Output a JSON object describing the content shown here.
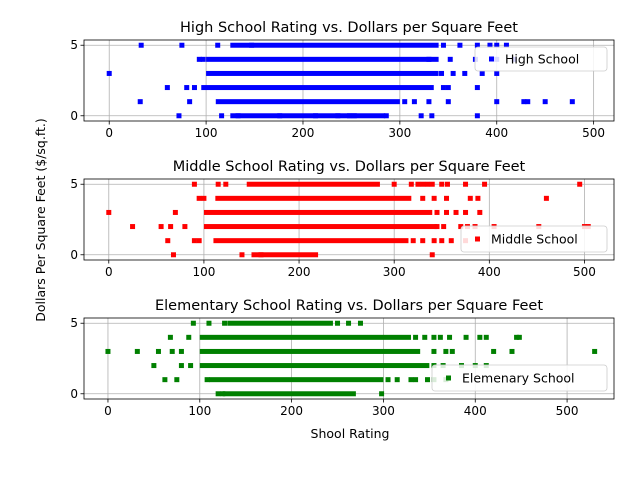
{
  "figure": {
    "shared_ylabel": "Dollars Per Square Feet ($/sq.ft.)",
    "shared_xlabel": "Shool Rating"
  },
  "chart_data": [
    {
      "type": "scatter",
      "title": "High School Rating vs. Dollars per Square Feet",
      "legend": {
        "label": "High School",
        "placement": "right"
      },
      "color": "#0000ff",
      "xlim": [
        -25,
        520
      ],
      "ylim": [
        -0.3,
        5.3
      ],
      "xticks": [
        0,
        100,
        200,
        300,
        400,
        500
      ],
      "yticks": [
        0,
        5
      ],
      "grid": true,
      "bands": [
        {
          "y": 5,
          "x_start": 125,
          "x_end": 340
        },
        {
          "y": 4,
          "x_start": 100,
          "x_end": 340
        },
        {
          "y": 3,
          "x_start": 100,
          "x_end": 340
        },
        {
          "y": 2,
          "x_start": 95,
          "x_end": 335
        },
        {
          "y": 1,
          "x_start": 110,
          "x_end": 300
        },
        {
          "y": 0,
          "x_start": 125,
          "x_end": 285
        }
      ],
      "points": [
        [
          0,
          3
        ],
        [
          33,
          5
        ],
        [
          75,
          5
        ],
        [
          112,
          5
        ],
        [
          147,
          5
        ],
        [
          345,
          5
        ],
        [
          362,
          5
        ],
        [
          380,
          5
        ],
        [
          393,
          5
        ],
        [
          400,
          5
        ],
        [
          410,
          5
        ],
        [
          330,
          4
        ],
        [
          352,
          4
        ],
        [
          378,
          4
        ],
        [
          400,
          4
        ],
        [
          418,
          4
        ],
        [
          93,
          4
        ],
        [
          97,
          4
        ],
        [
          343,
          3
        ],
        [
          355,
          3
        ],
        [
          367,
          3
        ],
        [
          385,
          3
        ],
        [
          400,
          3
        ],
        [
          32,
          1
        ],
        [
          83,
          1
        ],
        [
          305,
          1
        ],
        [
          315,
          1
        ],
        [
          330,
          1
        ],
        [
          350,
          1
        ],
        [
          400,
          1
        ],
        [
          428,
          1
        ],
        [
          432,
          1
        ],
        [
          450,
          1
        ],
        [
          478,
          1
        ],
        [
          60,
          2
        ],
        [
          80,
          2
        ],
        [
          88,
          2
        ],
        [
          345,
          2
        ],
        [
          350,
          2
        ],
        [
          380,
          2
        ],
        [
          72,
          0
        ],
        [
          116,
          0
        ],
        [
          133,
          0
        ],
        [
          176,
          0
        ],
        [
          213,
          0
        ],
        [
          236,
          0
        ],
        [
          248,
          0
        ],
        [
          253,
          0
        ],
        [
          286,
          0
        ],
        [
          322,
          0
        ],
        [
          333,
          0
        ],
        [
          380,
          0
        ]
      ]
    },
    {
      "type": "scatter",
      "title": "Middle School Rating vs. Dollars per Square Feet",
      "legend": {
        "label": "Middle School",
        "placement": "lower right"
      },
      "color": "#ff0000",
      "xlim": [
        -25,
        530
      ],
      "ylim": [
        -0.3,
        5.3
      ],
      "xticks": [
        0,
        100,
        200,
        300,
        400,
        500
      ],
      "yticks": [
        0,
        5
      ],
      "grid": true,
      "bands": [
        {
          "y": 5,
          "x_start": 145,
          "x_end": 285
        },
        {
          "y": 4,
          "x_start": 112,
          "x_end": 318
        },
        {
          "y": 3,
          "x_start": 100,
          "x_end": 340
        },
        {
          "y": 2,
          "x_start": 100,
          "x_end": 345
        },
        {
          "y": 1,
          "x_start": 110,
          "x_end": 315
        },
        {
          "y": 0,
          "x_start": 150,
          "x_end": 220
        }
      ],
      "points": [
        [
          0,
          3
        ],
        [
          90,
          5
        ],
        [
          115,
          5
        ],
        [
          123,
          5
        ],
        [
          300,
          5
        ],
        [
          318,
          5
        ],
        [
          325,
          5
        ],
        [
          330,
          5
        ],
        [
          335,
          5
        ],
        [
          340,
          5
        ],
        [
          350,
          5
        ],
        [
          356,
          5
        ],
        [
          375,
          5
        ],
        [
          395,
          5
        ],
        [
          495,
          5
        ],
        [
          95,
          4
        ],
        [
          100,
          4
        ],
        [
          330,
          4
        ],
        [
          342,
          4
        ],
        [
          355,
          4
        ],
        [
          380,
          4
        ],
        [
          388,
          4
        ],
        [
          460,
          4
        ],
        [
          70,
          3
        ],
        [
          345,
          3
        ],
        [
          355,
          3
        ],
        [
          365,
          3
        ],
        [
          375,
          3
        ],
        [
          390,
          3
        ],
        [
          25,
          2
        ],
        [
          55,
          2
        ],
        [
          65,
          2
        ],
        [
          80,
          2
        ],
        [
          345,
          2
        ],
        [
          352,
          2
        ],
        [
          370,
          2
        ],
        [
          377,
          2
        ],
        [
          385,
          2
        ],
        [
          405,
          2
        ],
        [
          452,
          2
        ],
        [
          500,
          2
        ],
        [
          504,
          2
        ],
        [
          62,
          1
        ],
        [
          90,
          1
        ],
        [
          95,
          1
        ],
        [
          320,
          1
        ],
        [
          330,
          1
        ],
        [
          342,
          1
        ],
        [
          350,
          1
        ],
        [
          360,
          1
        ],
        [
          375,
          1
        ],
        [
          68,
          0
        ],
        [
          140,
          0
        ],
        [
          160,
          0
        ],
        [
          340,
          0
        ]
      ]
    },
    {
      "type": "scatter",
      "title": "Elementary School Rating vs. Dollars per Square Feet",
      "legend": {
        "label": "Elemenary School",
        "placement": "lower right"
      },
      "color": "#008000",
      "xlim": [
        -25,
        550
      ],
      "ylim": [
        -0.3,
        5.3
      ],
      "xticks": [
        0,
        100,
        200,
        300,
        400,
        500
      ],
      "yticks": [
        0,
        5
      ],
      "grid": true,
      "bands": [
        {
          "y": 5,
          "x_start": 130,
          "x_end": 245
        },
        {
          "y": 4,
          "x_start": 100,
          "x_end": 330
        },
        {
          "y": 3,
          "x_start": 100,
          "x_end": 340
        },
        {
          "y": 2,
          "x_start": 100,
          "x_end": 350
        },
        {
          "y": 1,
          "x_start": 110,
          "x_end": 300
        },
        {
          "y": 0,
          "x_start": 125,
          "x_end": 270
        }
      ],
      "points": [
        [
          0,
          3
        ],
        [
          93,
          5
        ],
        [
          110,
          5
        ],
        [
          127,
          5
        ],
        [
          250,
          5
        ],
        [
          262,
          5
        ],
        [
          275,
          5
        ],
        [
          68,
          4
        ],
        [
          88,
          4
        ],
        [
          335,
          4
        ],
        [
          345,
          4
        ],
        [
          355,
          4
        ],
        [
          362,
          4
        ],
        [
          372,
          4
        ],
        [
          390,
          4
        ],
        [
          405,
          4
        ],
        [
          412,
          4
        ],
        [
          445,
          4
        ],
        [
          448,
          4
        ],
        [
          32,
          3
        ],
        [
          55,
          3
        ],
        [
          70,
          3
        ],
        [
          80,
          3
        ],
        [
          355,
          3
        ],
        [
          368,
          3
        ],
        [
          375,
          3
        ],
        [
          420,
          3
        ],
        [
          440,
          3
        ],
        [
          530,
          3
        ],
        [
          50,
          2
        ],
        [
          80,
          2
        ],
        [
          90,
          2
        ],
        [
          355,
          2
        ],
        [
          365,
          2
        ],
        [
          385,
          2
        ],
        [
          400,
          2
        ],
        [
          412,
          2
        ],
        [
          62,
          1
        ],
        [
          75,
          1
        ],
        [
          108,
          1
        ],
        [
          305,
          1
        ],
        [
          315,
          1
        ],
        [
          330,
          1
        ],
        [
          335,
          1
        ],
        [
          348,
          1
        ],
        [
          355,
          1
        ],
        [
          368,
          1
        ],
        [
          120,
          0
        ],
        [
          125,
          0
        ],
        [
          298,
          0
        ]
      ]
    }
  ]
}
